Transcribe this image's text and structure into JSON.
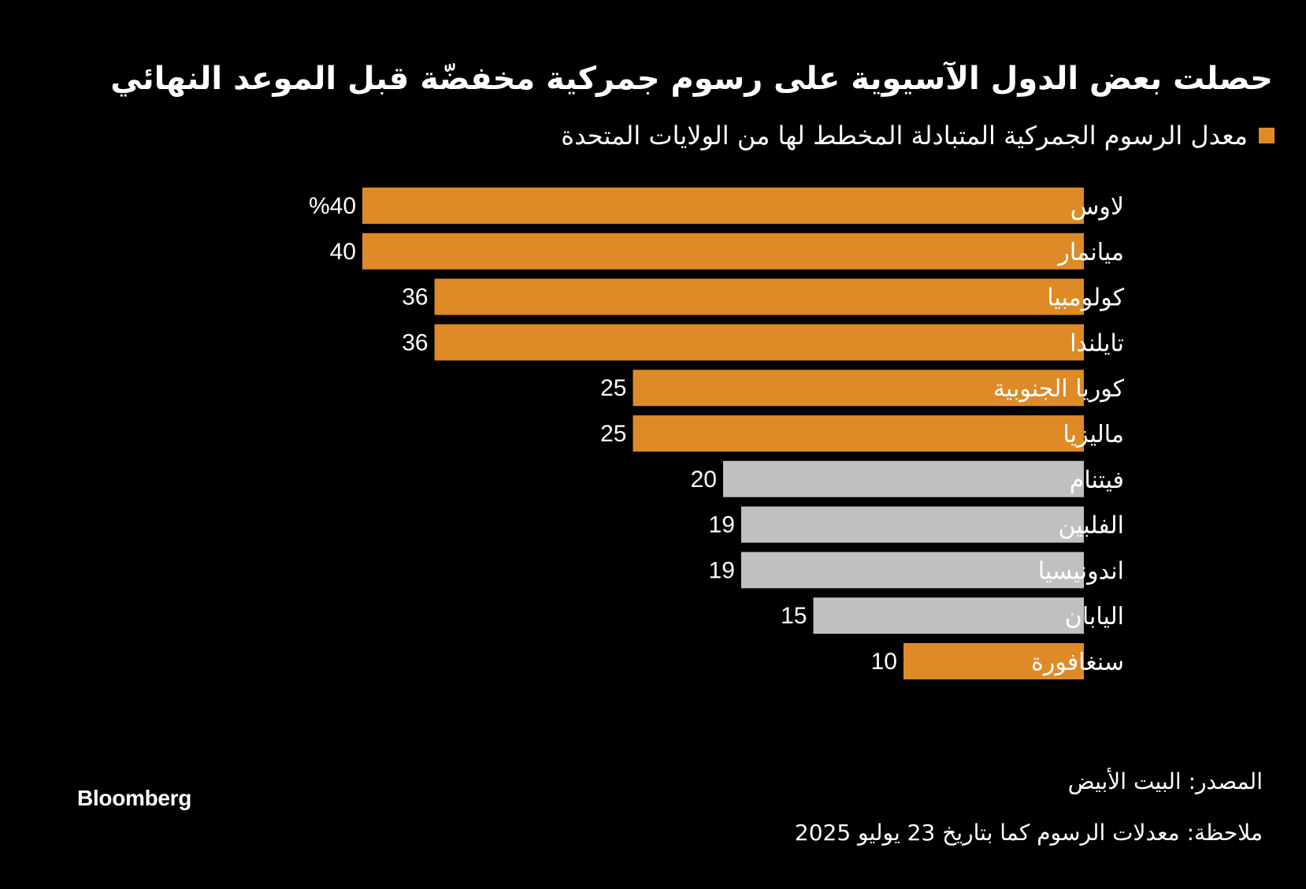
{
  "title": "حصلت بعض الدول الآسيوية على رسوم جمركية مخفضّة قبل الموعد النهائي",
  "legend_label": "معدل الرسوم الجمركية المتبادلة المخطط لها من الولايات المتحدة",
  "source": "المصدر: البيت الأبيض",
  "note": "ملاحظة: معدلات الرسوم كما بتاريخ 23 يوليو 2025",
  "brand": "Bloomberg",
  "colors": {
    "highlight": "#DE8A26",
    "muted": "#C0C0C0",
    "background": "#000000",
    "text": "#FFFFFF"
  },
  "chart_data": {
    "type": "bar",
    "orientation": "horizontal",
    "title": "حصلت بعض الدول الآسيوية على رسوم جمركية مخفضّة قبل الموعد النهائي",
    "series": [
      {
        "name": "معدل الرسوم الجمركية المتبادلة المخطط لها من الولايات المتحدة"
      }
    ],
    "categories": [
      "لاوس",
      "ميانمار",
      "كولومبيا",
      "تايلندا",
      "كوريا الجنوبية",
      "ماليزيا",
      "فيتنام",
      "الفلبين",
      "اندونيسيا",
      "اليابان",
      "سنغافورة"
    ],
    "values": [
      40,
      40,
      36,
      36,
      25,
      25,
      20,
      19,
      19,
      15,
      10
    ],
    "value_labels": [
      "%40",
      "40",
      "36",
      "36",
      "25",
      "25",
      "20",
      "19",
      "19",
      "15",
      "10"
    ],
    "highlighted": [
      true,
      true,
      true,
      true,
      true,
      true,
      false,
      false,
      false,
      false,
      true
    ],
    "unit": "%",
    "xlim": [
      0,
      40
    ],
    "grid": false,
    "legend_position": "top-right"
  }
}
